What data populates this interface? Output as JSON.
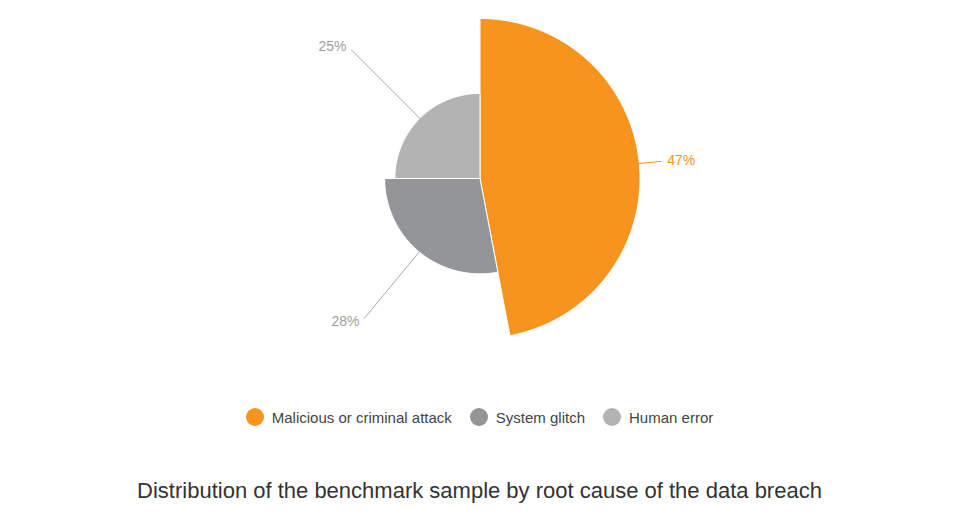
{
  "chart_data": {
    "type": "pie",
    "title": "Distribution of the benchmark sample by root cause of the data breach",
    "categories": [
      "Malicious or criminal attack",
      "System glitch",
      "Human error"
    ],
    "values": [
      47,
      28,
      25
    ],
    "value_labels": [
      "47%",
      "28%",
      "25%"
    ],
    "colors": [
      "#f7941d",
      "#939598",
      "#b3b3b3"
    ],
    "data_labels": true,
    "legend": "bottom"
  }
}
